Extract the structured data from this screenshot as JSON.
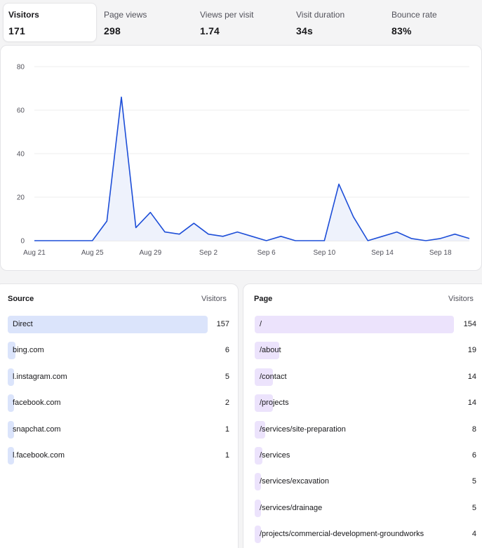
{
  "stats": [
    {
      "label": "Visitors",
      "value": "171"
    },
    {
      "label": "Page views",
      "value": "298"
    },
    {
      "label": "Views per visit",
      "value": "1.74"
    },
    {
      "label": "Visit duration",
      "value": "34s"
    },
    {
      "label": "Bounce rate",
      "value": "83%"
    }
  ],
  "chart_data": {
    "type": "area",
    "title": "",
    "xlabel": "",
    "ylabel": "",
    "ylim": [
      0,
      80
    ],
    "yticks": [
      0,
      20,
      40,
      60,
      80
    ],
    "xticks": [
      "Aug 21",
      "Aug 25",
      "Aug 29",
      "Sep 2",
      "Sep 6",
      "Sep 10",
      "Sep 14",
      "Sep 18"
    ],
    "grid": true,
    "x": [
      "Aug 21",
      "Aug 22",
      "Aug 23",
      "Aug 24",
      "Aug 25",
      "Aug 26",
      "Aug 27",
      "Aug 28",
      "Aug 29",
      "Aug 30",
      "Aug 31",
      "Sep 1",
      "Sep 2",
      "Sep 3",
      "Sep 4",
      "Sep 5",
      "Sep 6",
      "Sep 7",
      "Sep 8",
      "Sep 9",
      "Sep 10",
      "Sep 11",
      "Sep 12",
      "Sep 13",
      "Sep 14",
      "Sep 15",
      "Sep 16",
      "Sep 17",
      "Sep 18",
      "Sep 19",
      "Sep 20"
    ],
    "series": [
      {
        "values": [
          0,
          0,
          0,
          0,
          0,
          9,
          66,
          6,
          13,
          4,
          3,
          8,
          3,
          2,
          4,
          2,
          0,
          2,
          0,
          0,
          0,
          26,
          11,
          0,
          2,
          4,
          1,
          0,
          1,
          3,
          1
        ]
      }
    ],
    "line_color": "#1d4ed8",
    "fill_color": "#eef2fc"
  },
  "sources": {
    "header_name": "Source",
    "header_value": "Visitors",
    "bar_color": "#dbe4fb",
    "items": [
      {
        "name": "Direct",
        "value": "157",
        "share": 1.0
      },
      {
        "name": "bing.com",
        "value": "6",
        "share": 0.038
      },
      {
        "name": "l.instagram.com",
        "value": "5",
        "share": 0.032
      },
      {
        "name": "facebook.com",
        "value": "2",
        "share": 0.013
      },
      {
        "name": "snapchat.com",
        "value": "1",
        "share": 0.006
      },
      {
        "name": "l.facebook.com",
        "value": "1",
        "share": 0.006
      }
    ]
  },
  "pages": {
    "header_name": "Page",
    "header_value": "Visitors",
    "bar_color": "#ece3fc",
    "items": [
      {
        "name": "/",
        "value": "154",
        "share": 1.0
      },
      {
        "name": "/about",
        "value": "19",
        "share": 0.123
      },
      {
        "name": "/contact",
        "value": "14",
        "share": 0.091
      },
      {
        "name": "/projects",
        "value": "14",
        "share": 0.091
      },
      {
        "name": "/services/site-preparation",
        "value": "8",
        "share": 0.052
      },
      {
        "name": "/services",
        "value": "6",
        "share": 0.039
      },
      {
        "name": "/services/excavation",
        "value": "5",
        "share": 0.032
      },
      {
        "name": "/services/drainage",
        "value": "5",
        "share": 0.032
      },
      {
        "name": "/projects/commercial-development-groundworks",
        "value": "4",
        "share": 0.026
      }
    ]
  }
}
